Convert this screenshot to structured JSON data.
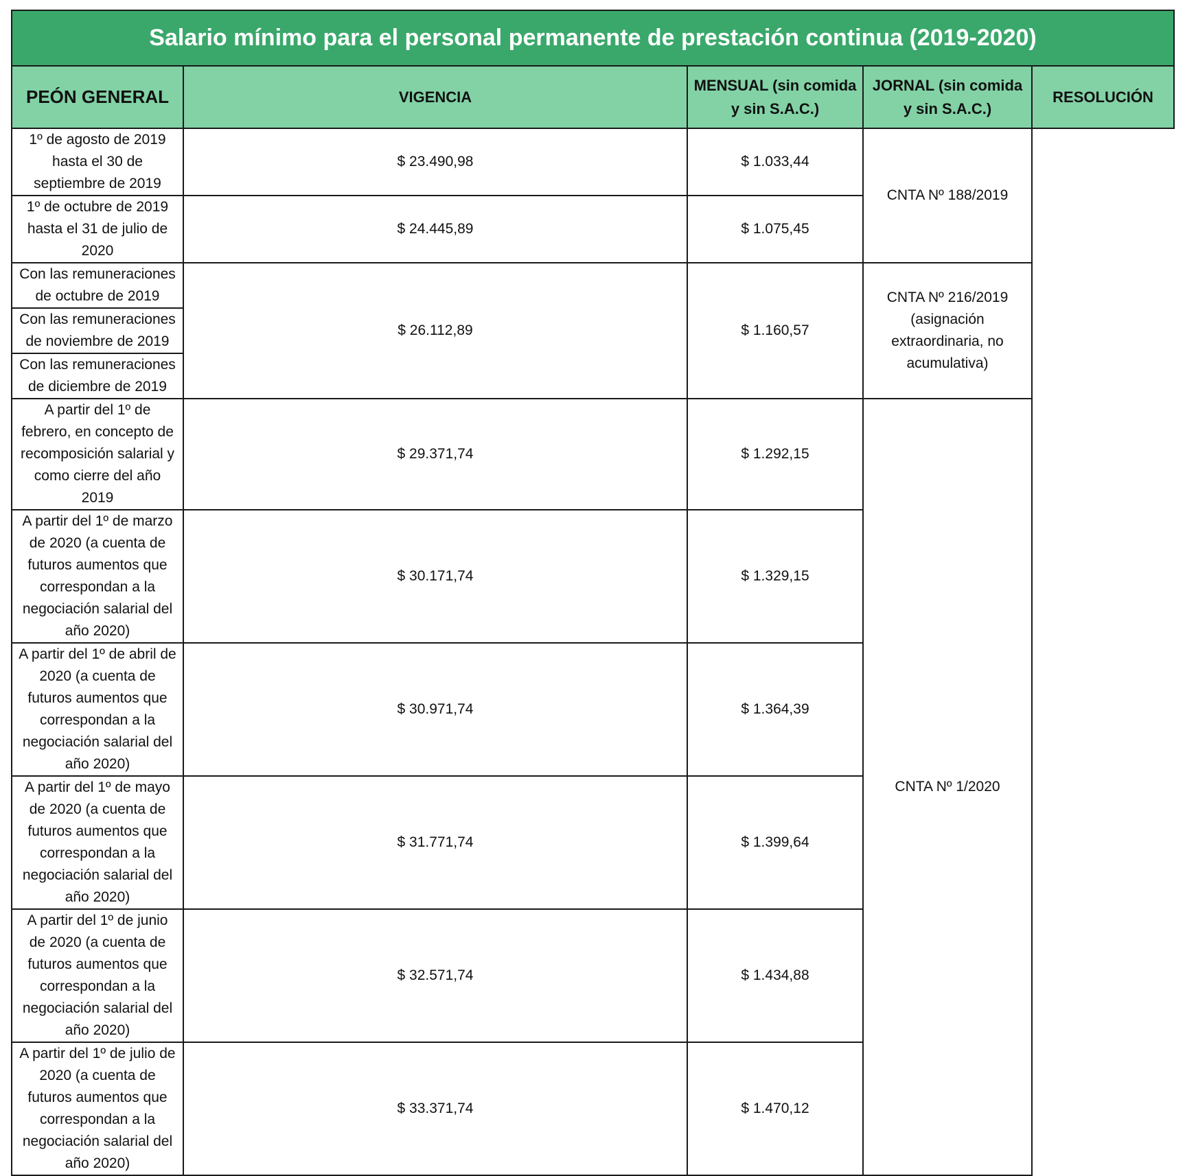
{
  "title": "Salario mínimo para el personal permanente de prestación continua (2019-2020)",
  "category": "PEÓN GENERAL",
  "headers": {
    "vigencia": "VIGENCIA",
    "mensual": "MENSUAL (sin comida y sin S.A.C.)",
    "jornal": "JORNAL (sin comida y sin S.A.C.)",
    "resolucion": "RESOLUCIÓN"
  },
  "rows": [
    {
      "vigencia": "1º de agosto de 2019 hasta el 30 de septiembre de 2019",
      "mensual": "$ 23.490,98",
      "jornal": "$ 1.033,44"
    },
    {
      "vigencia": "1º de octubre de 2019 hasta el 31 de julio de 2020",
      "mensual": "$ 24.445,89",
      "jornal": "$ 1.075,45"
    },
    {
      "vigencia": "Con las remuneraciones de octubre de 2019"
    },
    {
      "vigencia": "Con las remuneraciones de noviembre de 2019"
    },
    {
      "vigencia": "Con las remuneraciones de diciembre de 2019"
    },
    {
      "vigencia": "A partir del 1º de febrero, en concepto de recomposición salarial y como cierre del año 2019",
      "mensual": "$ 29.371,74",
      "jornal": "$ 1.292,15"
    },
    {
      "vigencia": "A partir del 1º de marzo de 2020 (a cuenta de futuros aumentos que correspondan a la negociación salarial del año 2020)",
      "mensual": "$ 30.171,74",
      "jornal": "$ 1.329,15"
    },
    {
      "vigencia": "A partir del 1º de abril de 2020 (a cuenta de futuros aumentos que correspondan a la negociación salarial del año 2020)",
      "mensual": "$ 30.971,74",
      "jornal": "$ 1.364,39"
    },
    {
      "vigencia": "A partir del 1º de mayo de 2020 (a cuenta de futuros aumentos que correspondan a la negociación salarial del año 2020)",
      "mensual": "$ 31.771,74",
      "jornal": "$ 1.399,64"
    },
    {
      "vigencia": "A partir del 1º de junio de 2020 (a cuenta de futuros aumentos que correspondan a la negociación salarial del año 2020)",
      "mensual": "$ 32.571,74",
      "jornal": "$ 1.434,88"
    },
    {
      "vigencia": "A partir del 1º de julio de 2020 (a cuenta de futuros aumentos que correspondan a la negociación salarial del año 2020)",
      "mensual": "$ 33.371,74",
      "jornal": "$ 1.470,12"
    }
  ],
  "group_values": {
    "mensual": "$ 26.112,89",
    "jornal": "$ 1.160,57"
  },
  "resoluciones": [
    "CNTA Nº 188/2019",
    "CNTA Nº 216/2019 (asignación extraordinaria, no acumulativa)",
    "CNTA Nº 1/2020"
  ],
  "colors": {
    "title_bg": "#3aa86b",
    "header_bg": "#82d2a6"
  }
}
